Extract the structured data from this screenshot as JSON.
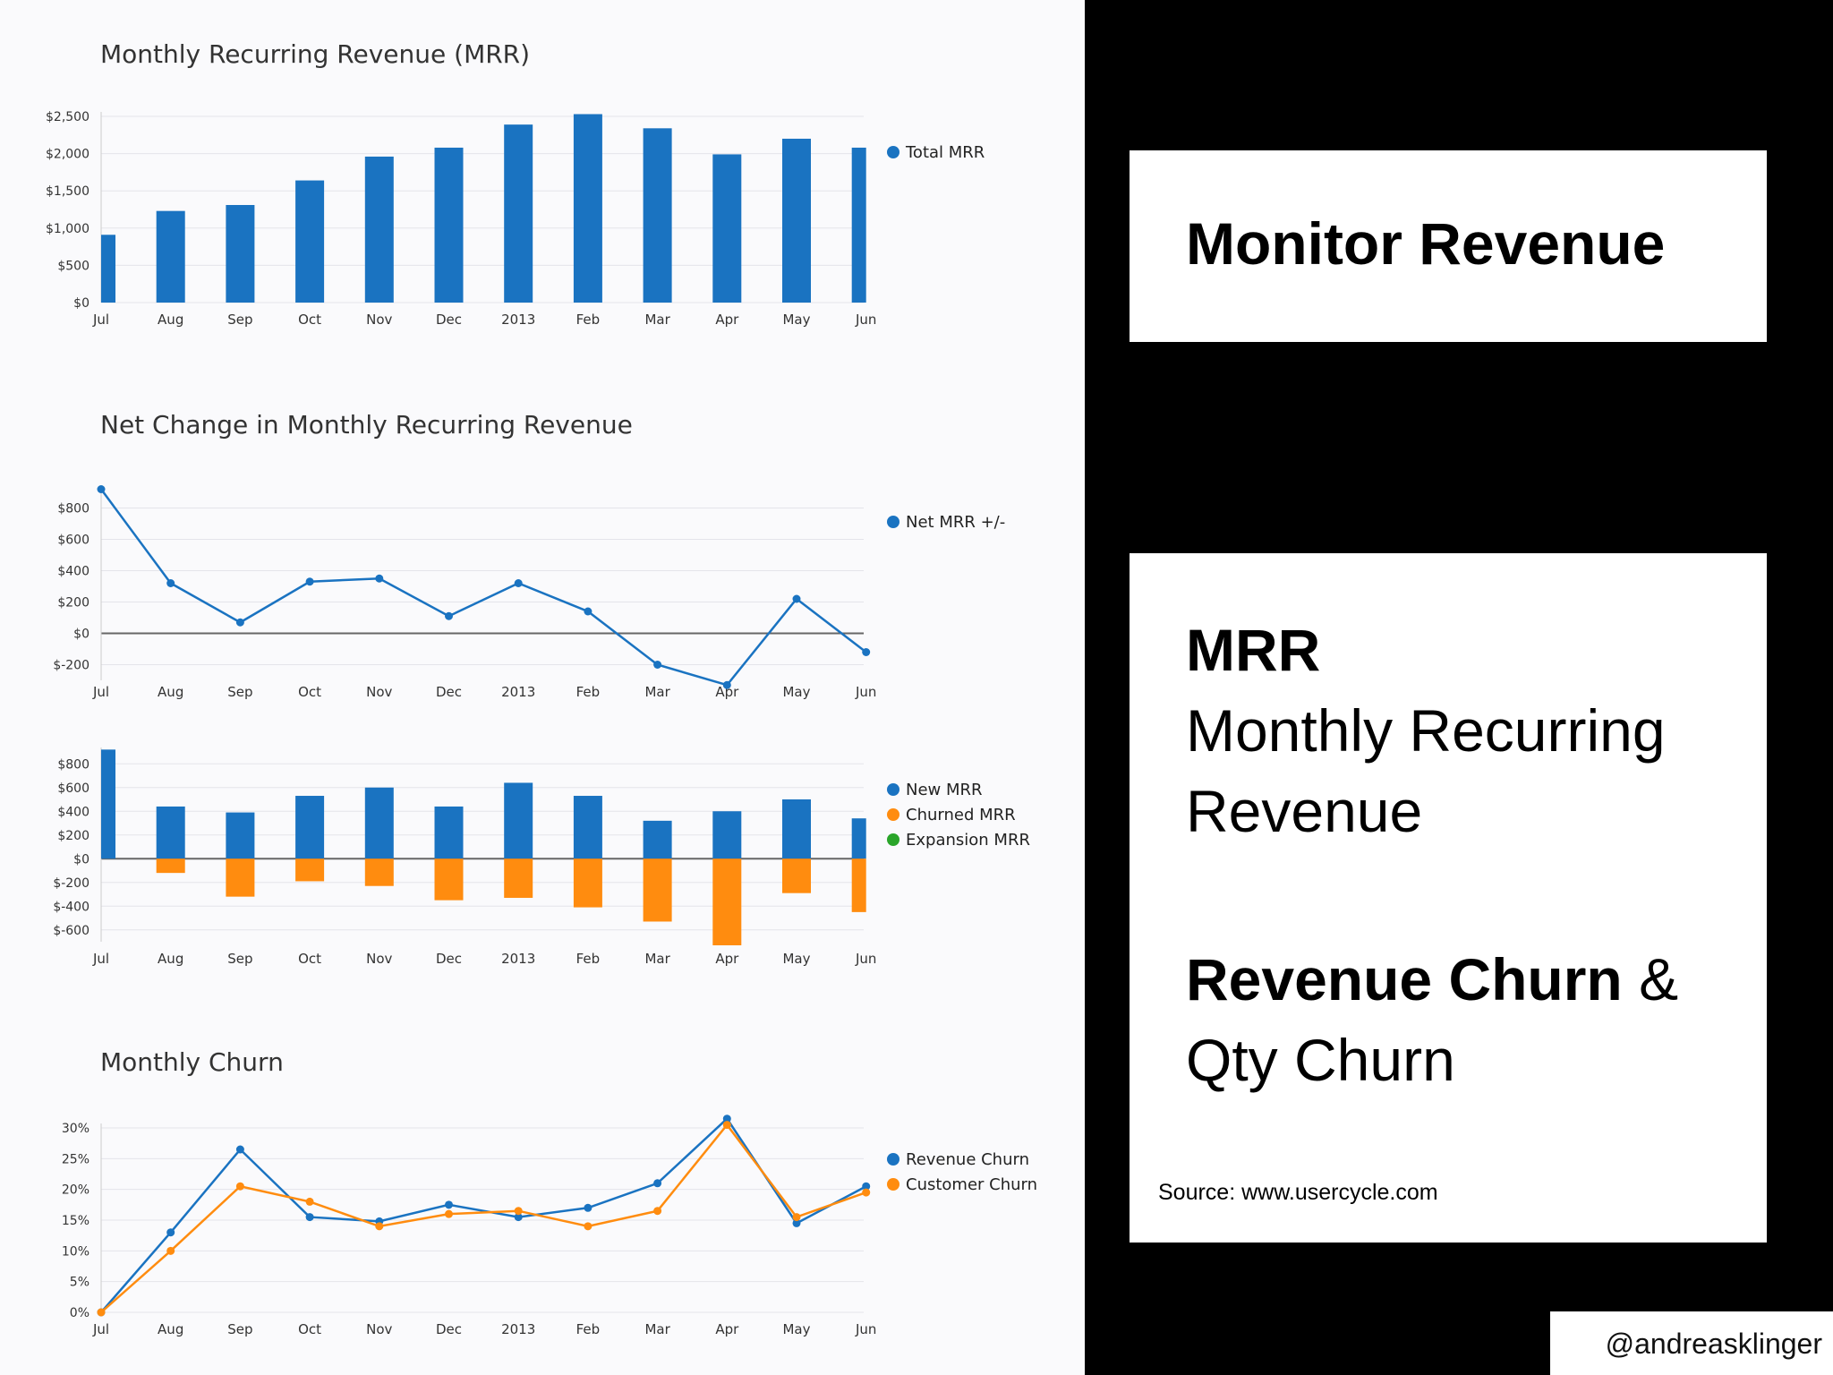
{
  "chart_data": [
    {
      "type": "bar",
      "title": "Monthly Recurring Revenue (MRR)",
      "categories": [
        "Jul",
        "Aug",
        "Sep",
        "Oct",
        "Nov",
        "Dec",
        "2013",
        "Feb",
        "Mar",
        "Apr",
        "May",
        "Jun"
      ],
      "series": [
        {
          "name": "Total MRR",
          "color": "#1a73c1",
          "values": [
            910,
            1230,
            1310,
            1640,
            1960,
            2080,
            2390,
            2530,
            2340,
            1990,
            2200,
            2080
          ]
        }
      ],
      "yticks": [
        "$2,500",
        "$2,000",
        "$1,500",
        "$1,000",
        "$500",
        "$0"
      ],
      "ylim": [
        0,
        2500
      ],
      "legend_position": "right"
    },
    {
      "type": "line",
      "title": "Net Change in Monthly Recurring Revenue",
      "categories": [
        "Jul",
        "Aug",
        "Sep",
        "Oct",
        "Nov",
        "Dec",
        "2013",
        "Feb",
        "Mar",
        "Apr",
        "May",
        "Jun"
      ],
      "series": [
        {
          "name": "Net MRR +/-",
          "color": "#1a73c1",
          "values": [
            920,
            320,
            70,
            330,
            350,
            110,
            320,
            140,
            -200,
            -330,
            220,
            -120
          ]
        }
      ],
      "yticks": [
        "$800",
        "$600",
        "$400",
        "$200",
        "$0",
        "$-200"
      ],
      "ylim": [
        -300,
        900
      ],
      "legend_position": "right"
    },
    {
      "type": "bar",
      "categories": [
        "Jul",
        "Aug",
        "Sep",
        "Oct",
        "Nov",
        "Dec",
        "2013",
        "Feb",
        "Mar",
        "Apr",
        "May",
        "Jun"
      ],
      "series": [
        {
          "name": "New MRR",
          "color": "#1a73c1",
          "values": [
            920,
            440,
            390,
            530,
            600,
            440,
            640,
            530,
            320,
            400,
            500,
            340
          ]
        },
        {
          "name": "Churned MRR",
          "color": "#ff8c0f",
          "values": [
            0,
            -120,
            -320,
            -190,
            -230,
            -350,
            -330,
            -410,
            -530,
            -730,
            -290,
            -450
          ]
        },
        {
          "name": "Expansion MRR",
          "color": "#2aa52a",
          "values": [
            0,
            0,
            0,
            0,
            0,
            0,
            0,
            0,
            0,
            0,
            0,
            0
          ]
        }
      ],
      "yticks": [
        "$800",
        "$600",
        "$400",
        "$200",
        "$0",
        "$-200",
        "$-400",
        "$-600"
      ],
      "ylim": [
        -700,
        900
      ],
      "legend_position": "right"
    },
    {
      "type": "line",
      "title": "Monthly Churn",
      "categories": [
        "Jul",
        "Aug",
        "Sep",
        "Oct",
        "Nov",
        "Dec",
        "2013",
        "Feb",
        "Mar",
        "Apr",
        "May",
        "Jun"
      ],
      "series": [
        {
          "name": "Revenue Churn",
          "color": "#1a73c1",
          "values": [
            0,
            13,
            26.5,
            15.5,
            14.8,
            17.5,
            15.5,
            17,
            21,
            31.5,
            14.5,
            20.5
          ]
        },
        {
          "name": "Customer Churn",
          "color": "#ff8c0f",
          "values": [
            0,
            10,
            20.5,
            18,
            14,
            16,
            16.5,
            14,
            16.5,
            30.5,
            15.5,
            19.5
          ]
        }
      ],
      "yticks": [
        "30%",
        "25%",
        "20%",
        "15%",
        "10%",
        "5%",
        "0%"
      ],
      "ylim": [
        0,
        30
      ],
      "legend_position": "right"
    }
  ],
  "card_top": {
    "title": "Monitor Revenue"
  },
  "card_main": {
    "mrr_heading": "MRR",
    "mrr_line1": "Monthly Recurring",
    "mrr_line2": "Revenue",
    "churn_bold": "Revenue Churn",
    "churn_amp": " &",
    "churn_line2": "Qty Churn",
    "source": "Source: www.usercycle.com"
  },
  "credit": "@andreasklinger"
}
